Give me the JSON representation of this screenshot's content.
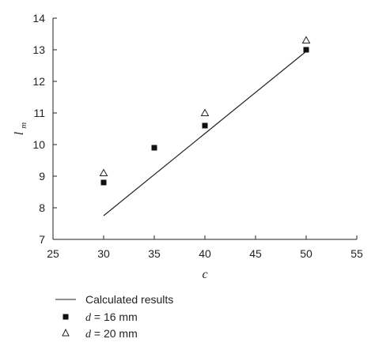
{
  "chart_data": {
    "type": "scatter",
    "title": "",
    "xlabel": "c",
    "ylabel_main": "l",
    "ylabel_sub": "m",
    "xlim": [
      25,
      55
    ],
    "ylim": [
      7,
      14
    ],
    "xticks": [
      "25",
      "30",
      "35",
      "40",
      "45",
      "50",
      "55"
    ],
    "yticks": [
      "7",
      "8",
      "9",
      "10",
      "11",
      "12",
      "13",
      "14"
    ],
    "grid": false,
    "legend_position": "bottom-left",
    "series": [
      {
        "name": "Calculated results",
        "kind": "line",
        "marker": "none",
        "x": [
          30,
          50
        ],
        "y": [
          7.75,
          12.95
        ]
      },
      {
        "name_var": "d",
        "name_rest": " = 16 mm",
        "kind": "scatter",
        "marker": "filled-square",
        "x": [
          30,
          35,
          40,
          50
        ],
        "y": [
          8.8,
          9.9,
          10.6,
          13.0
        ]
      },
      {
        "name_var": "d",
        "name_rest": " = 20 mm",
        "kind": "scatter",
        "marker": "open-triangle",
        "x": [
          30,
          40,
          50
        ],
        "y": [
          9.1,
          11.0,
          13.3
        ]
      }
    ]
  }
}
